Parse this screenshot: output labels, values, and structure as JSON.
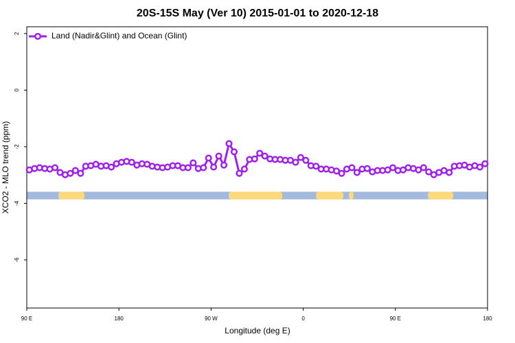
{
  "chart_data": {
    "type": "line",
    "title": "20S-15S May (Ver 10)   2015-01-01 to 2020-12-18",
    "x_label": "Longitude (deg E)",
    "y_label": "XCO2 - MLO trend (ppm)",
    "xlim": [
      90,
      540
    ],
    "xticks": [
      {
        "value": 90,
        "label": "90 E"
      },
      180,
      {
        "value": 270,
        "label": "90 W"
      },
      {
        "value": 360,
        "label": "0"
      },
      {
        "value": 450,
        "label": "90 E"
      },
      {
        "value": 540,
        "label": "180"
      }
    ],
    "ylim": [
      -7.7,
      2.24
    ],
    "yticks": [
      2,
      0,
      -2,
      -4,
      -6
    ],
    "legend": "top-left",
    "x": [
      92.5,
      97.5,
      102.5,
      107.5,
      112.5,
      117.5,
      122.5,
      127.5,
      132.5,
      137.5,
      142.5,
      147.5,
      152.5,
      157.5,
      162.5,
      167.5,
      172.5,
      177.5,
      182.5,
      187.5,
      192.5,
      197.5,
      202.5,
      207.5,
      212.5,
      217.5,
      222.5,
      227.5,
      232.5,
      237.5,
      242.5,
      247.5,
      252.5,
      257.5,
      262.5,
      267.5,
      272.5,
      277.5,
      282.5,
      287.5,
      292.5,
      297.5,
      302.5,
      307.5,
      312.5,
      317.5,
      322.5,
      327.5,
      332.5,
      337.5,
      342.5,
      347.5,
      352.5,
      357.5,
      362.5,
      367.5,
      372.5,
      377.5,
      382.5,
      387.5,
      392.5,
      397.5,
      402.5,
      407.5,
      412.5,
      417.5,
      422.5,
      427.5,
      432.5,
      437.5,
      442.5,
      447.5,
      452.5,
      457.5,
      462.5,
      467.5,
      472.5,
      477.5,
      482.5,
      487.5,
      492.5,
      497.5,
      502.5,
      507.5,
      512.5,
      517.5,
      522.5,
      527.5,
      532.5,
      537.5
    ],
    "series": [
      {
        "name": "Land (Nadir&Glint) and Ocean (Glint)",
        "color": "#a020f0",
        "values": [
          -2.82,
          -2.77,
          -2.74,
          -2.77,
          -2.79,
          -2.74,
          -2.91,
          -2.99,
          -2.94,
          -2.84,
          -2.94,
          -2.69,
          -2.67,
          -2.62,
          -2.69,
          -2.67,
          -2.72,
          -2.6,
          -2.55,
          -2.52,
          -2.55,
          -2.65,
          -2.6,
          -2.62,
          -2.69,
          -2.72,
          -2.74,
          -2.72,
          -2.67,
          -2.67,
          -2.74,
          -2.74,
          -2.57,
          -2.77,
          -2.74,
          -2.4,
          -2.72,
          -2.33,
          -2.65,
          -1.89,
          -2.18,
          -2.94,
          -2.79,
          -2.45,
          -2.43,
          -2.23,
          -2.33,
          -2.43,
          -2.45,
          -2.45,
          -2.48,
          -2.48,
          -2.55,
          -2.38,
          -2.48,
          -2.67,
          -2.69,
          -2.79,
          -2.79,
          -2.82,
          -2.86,
          -2.94,
          -2.79,
          -2.74,
          -2.91,
          -2.79,
          -2.77,
          -2.89,
          -2.84,
          -2.84,
          -2.82,
          -2.74,
          -2.84,
          -2.82,
          -2.74,
          -2.77,
          -2.82,
          -2.74,
          -2.89,
          -2.99,
          -2.91,
          -2.84,
          -2.91,
          -2.69,
          -2.67,
          -2.65,
          -2.72,
          -2.67,
          -2.72,
          -2.6
        ]
      }
    ],
    "surface": {
      "ylim": [
        -3.59,
        -3.86
      ],
      "ocean_color": "#a3b9dd",
      "land_color": "#fcd97a",
      "land_spans": [
        [
          120.9,
          146.3
        ],
        [
          287.2,
          339.5
        ],
        [
          372.4,
          399.2
        ],
        [
          404.6,
          409.2
        ],
        [
          481.7,
          506.5
        ]
      ]
    }
  }
}
